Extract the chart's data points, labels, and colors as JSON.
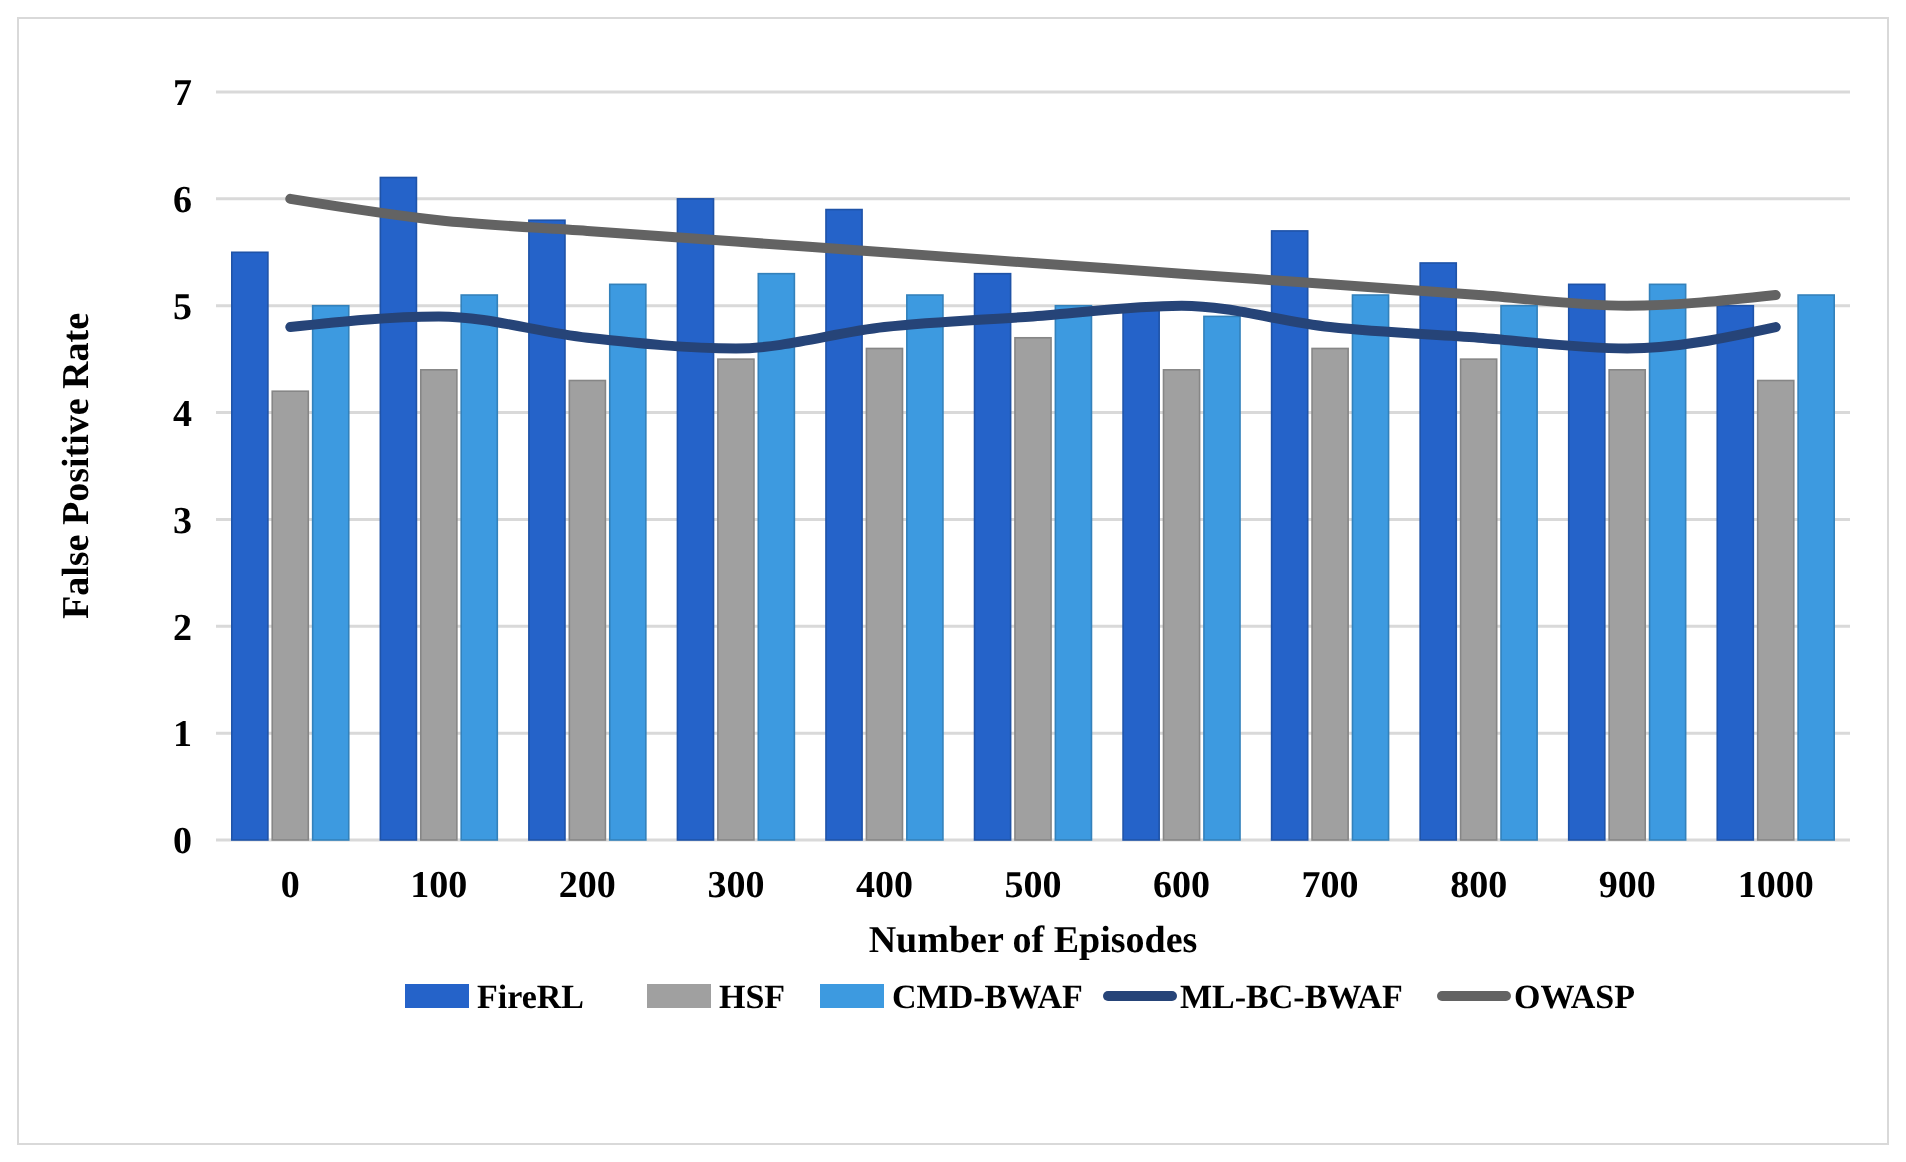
{
  "chart_data": {
    "type": "bar",
    "xlabel": "Number of Episodes",
    "ylabel": "False Positive Rate",
    "categories": [
      "0",
      "100",
      "200",
      "300",
      "400",
      "500",
      "600",
      "700",
      "800",
      "900",
      "1000"
    ],
    "series": [
      {
        "name": "FireRL",
        "color": "#2563c9",
        "values": [
          5.5,
          6.2,
          5.8,
          6.0,
          5.9,
          5.3,
          5.0,
          5.7,
          5.4,
          5.2,
          5.0
        ]
      },
      {
        "name": "HSF",
        "color": "#a0a0a0",
        "values": [
          4.2,
          4.4,
          4.3,
          4.5,
          4.6,
          4.7,
          4.4,
          4.6,
          4.5,
          4.4,
          4.3
        ]
      },
      {
        "name": "CMD-BWAF",
        "color": "#3d9ae0",
        "values": [
          5.0,
          5.1,
          5.2,
          5.3,
          5.1,
          5.0,
          4.9,
          5.1,
          5.0,
          5.2,
          5.1
        ]
      },
      {
        "name": "ML-BC-BWAF",
        "type": "line",
        "color": "#264478",
        "values": [
          4.8,
          4.9,
          4.7,
          4.6,
          4.8,
          4.9,
          5.0,
          4.8,
          4.7,
          4.6,
          4.8
        ]
      },
      {
        "name": "OWASP",
        "type": "line",
        "color": "#636363",
        "values": [
          6.0,
          5.8,
          5.7,
          5.6,
          5.5,
          5.4,
          5.3,
          5.2,
          5.1,
          5.0,
          5.1
        ]
      }
    ],
    "ylim": [
      0,
      7
    ],
    "yticks": [
      0,
      1,
      2,
      3,
      4,
      5,
      6,
      7
    ],
    "grid": "y",
    "legend": "bottom",
    "marker": "none",
    "line_style": "solid"
  }
}
